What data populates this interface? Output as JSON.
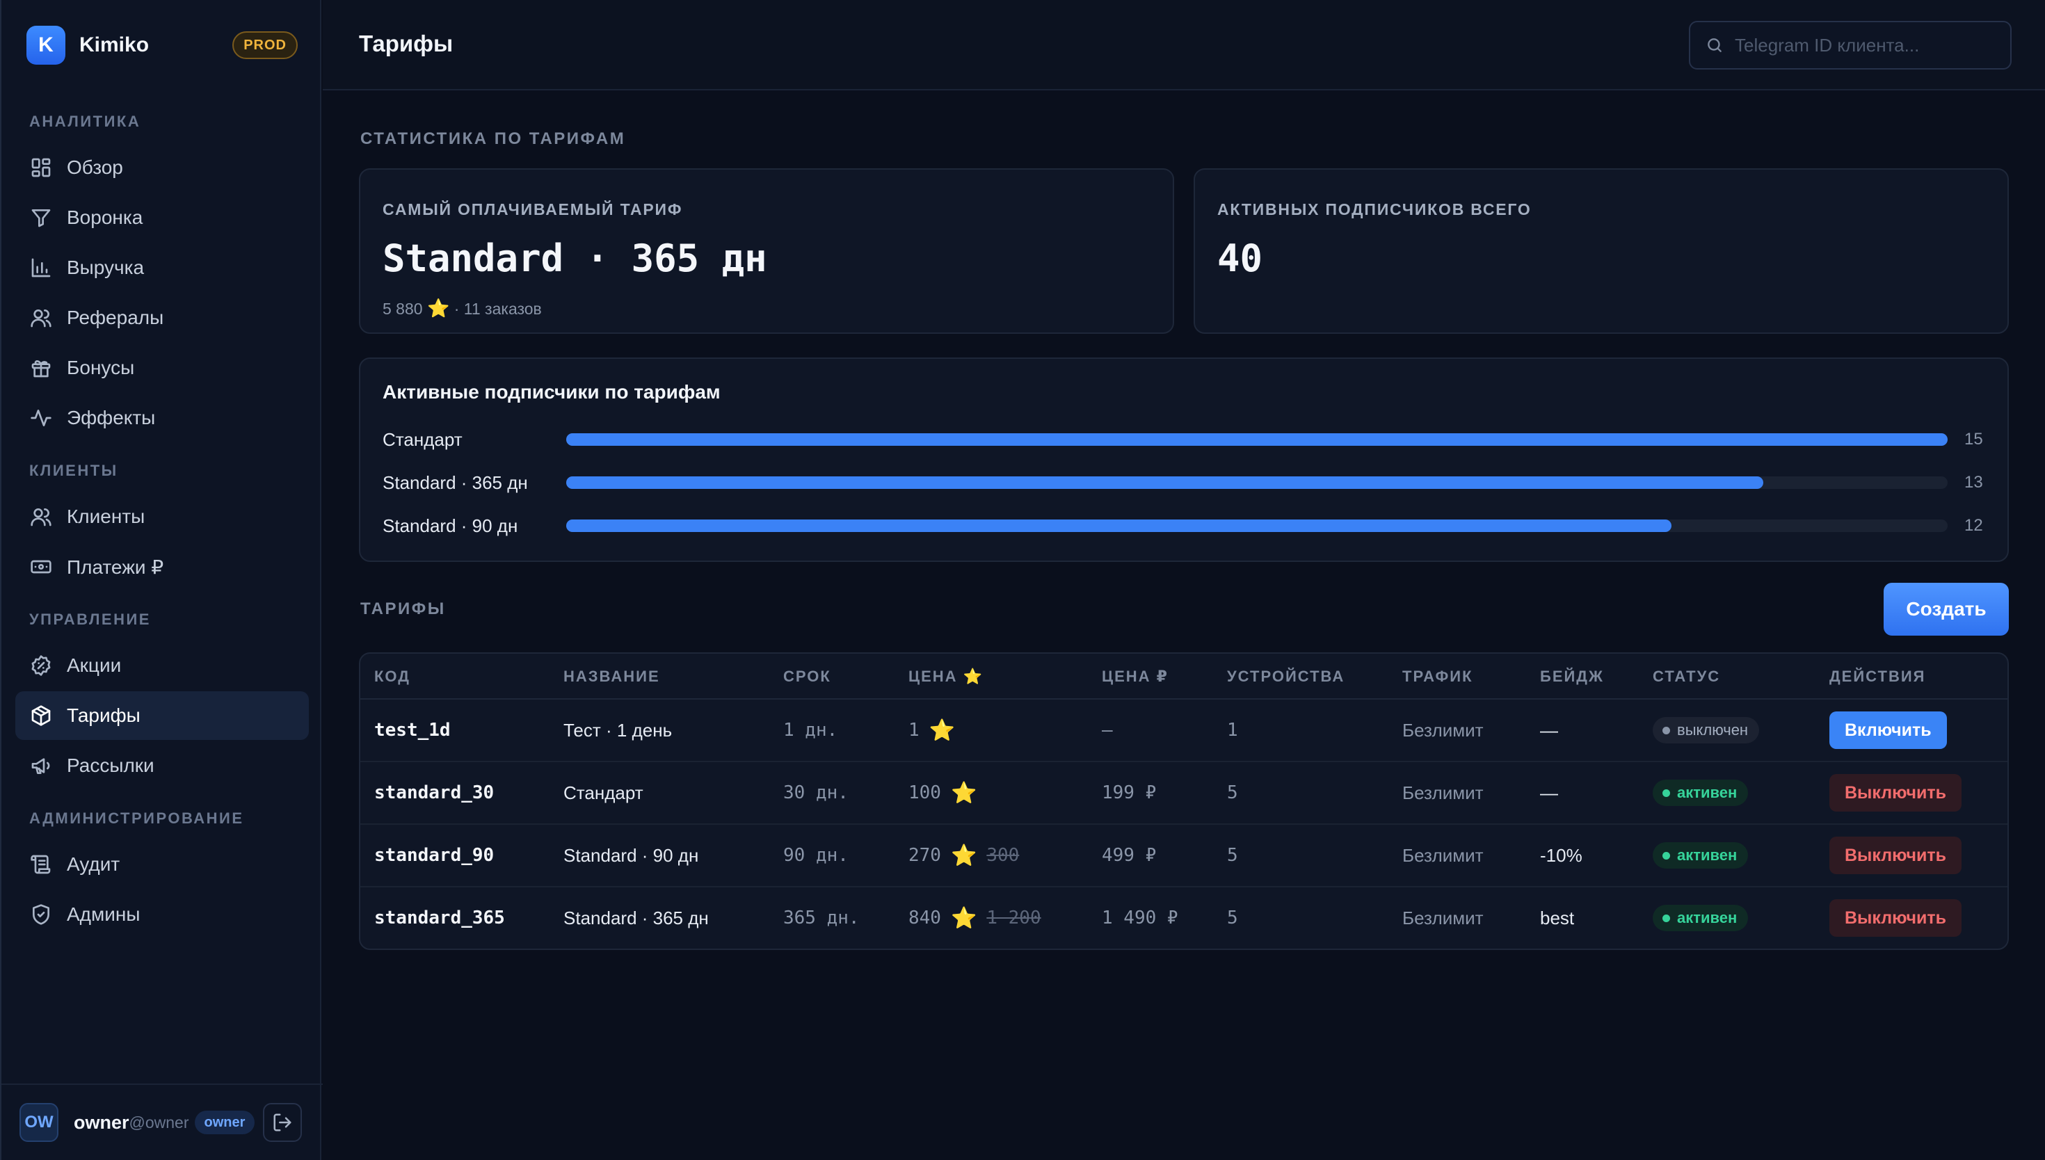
{
  "app": {
    "logo_letter": "K",
    "name": "Kimiko",
    "env": "PROD"
  },
  "sidebar": {
    "sections": [
      {
        "title": "АНАЛИТИКА",
        "items": [
          {
            "label": "Обзор",
            "icon": "grid-icon"
          },
          {
            "label": "Воронка",
            "icon": "funnel-icon"
          },
          {
            "label": "Выручка",
            "icon": "bar-chart-icon"
          },
          {
            "label": "Рефералы",
            "icon": "users-icon"
          },
          {
            "label": "Бонусы",
            "icon": "gift-icon"
          },
          {
            "label": "Эффекты",
            "icon": "activity-icon"
          }
        ]
      },
      {
        "title": "КЛИЕНТЫ",
        "items": [
          {
            "label": "Клиенты",
            "icon": "users-icon"
          },
          {
            "label": "Платежи ₽",
            "icon": "banknote-icon"
          }
        ]
      },
      {
        "title": "УПРАВЛЕНИЕ",
        "items": [
          {
            "label": "Акции",
            "icon": "badge-percent-icon"
          },
          {
            "label": "Тарифы",
            "icon": "package-icon",
            "active": true
          },
          {
            "label": "Рассылки",
            "icon": "megaphone-icon"
          }
        ]
      },
      {
        "title": "АДМИНИСТРИРОВАНИЕ",
        "items": [
          {
            "label": "Аудит",
            "icon": "scroll-icon"
          },
          {
            "label": "Админы",
            "icon": "shield-icon"
          }
        ]
      }
    ],
    "user": {
      "initials": "OW",
      "name": "owner",
      "handle": "@owner",
      "role": "owner"
    }
  },
  "header": {
    "title": "Тарифы",
    "search_placeholder": "Telegram ID клиента..."
  },
  "stats": {
    "section_title": "СТАТИСТИКА ПО ТАРИФАМ",
    "top_tariff": {
      "label": "САМЫЙ ОПЛАЧИВАЕМЫЙ ТАРИФ",
      "value": "Standard · 365 дн",
      "sub_amount": "5 880",
      "sub_star": "⭐",
      "sub_orders": "· 11 заказов"
    },
    "active_total": {
      "label": "АКТИВНЫХ ПОДПИСЧИКОВ ВСЕГО",
      "value": "40"
    },
    "by_tariff": {
      "title": "Активные подписчики по тарифам",
      "max": 15,
      "rows": [
        {
          "label": "Стандарт",
          "value": 15
        },
        {
          "label": "Standard · 365 дн",
          "value": 13
        },
        {
          "label": "Standard · 90 дн",
          "value": 12
        }
      ]
    }
  },
  "tariffs": {
    "section_title": "ТАРИФЫ",
    "create_label": "Создать",
    "columns": [
      "КОД",
      "НАЗВАНИЕ",
      "СРОК",
      "ЦЕНА ⭐",
      "ЦЕНА ₽",
      "УСТРОЙСТВА",
      "ТРАФИК",
      "БЕЙДЖ",
      "СТАТУС",
      "ДЕЙСТВИЯ"
    ],
    "rows": [
      {
        "code": "test_1d",
        "name": "Тест · 1 день",
        "term": "1 дн.",
        "price_stars": "1",
        "star": "⭐",
        "old_price": "",
        "price_rub": "—",
        "devices": "1",
        "traffic": "Безлимит",
        "badge": "—",
        "status": "выключен",
        "active": false,
        "action": "Включить"
      },
      {
        "code": "standard_30",
        "name": "Стандарт",
        "term": "30 дн.",
        "price_stars": "100",
        "star": "⭐",
        "old_price": "",
        "price_rub": "199 ₽",
        "devices": "5",
        "traffic": "Безлимит",
        "badge": "—",
        "status": "активен",
        "active": true,
        "action": "Выключить"
      },
      {
        "code": "standard_90",
        "name": "Standard · 90 дн",
        "term": "90 дн.",
        "price_stars": "270",
        "star": "⭐",
        "old_price": "300",
        "price_rub": "499 ₽",
        "devices": "5",
        "traffic": "Безлимит",
        "badge": "-10%",
        "status": "активен",
        "active": true,
        "action": "Выключить"
      },
      {
        "code": "standard_365",
        "name": "Standard · 365 дн",
        "term": "365 дн.",
        "price_stars": "840",
        "star": "⭐",
        "old_price": "1 200",
        "price_rub": "1 490 ₽",
        "devices": "5",
        "traffic": "Безлимит",
        "badge": "best",
        "status": "активен",
        "active": true,
        "action": "Выключить"
      }
    ]
  }
}
